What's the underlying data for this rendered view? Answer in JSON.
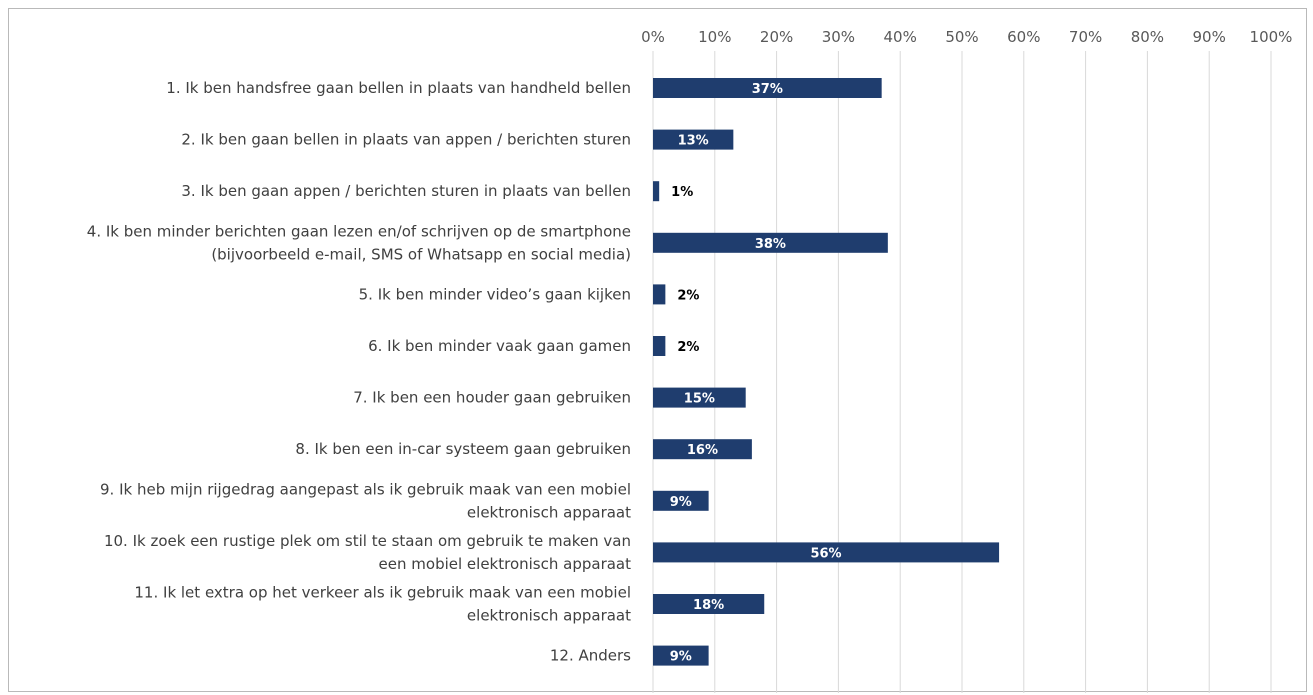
{
  "chart_data": {
    "type": "bar",
    "orientation": "horizontal",
    "title": "",
    "xlabel": "",
    "ylabel": "",
    "xlim": [
      0,
      100
    ],
    "x_ticks": [
      "0%",
      "10%",
      "20%",
      "30%",
      "40%",
      "50%",
      "60%",
      "70%",
      "80%",
      "90%",
      "100%"
    ],
    "x_axis_position": "top",
    "grid": true,
    "legend": "none",
    "bar_color": "#1f3d6e",
    "categories": [
      [
        "1. Ik ben handsfree gaan bellen in plaats van handheld bellen"
      ],
      [
        "2. Ik ben gaan bellen in plaats van appen / berichten sturen"
      ],
      [
        "3. Ik ben gaan appen / berichten sturen in plaats van bellen"
      ],
      [
        "4. Ik ben minder berichten gaan lezen en/of schrijven op de smartphone",
        "(bijvoorbeeld e-mail, SMS of Whatsapp en social media)"
      ],
      [
        "5. Ik ben minder video’s gaan kijken"
      ],
      [
        "6. Ik ben minder vaak gaan gamen"
      ],
      [
        "7. Ik ben een houder gaan gebruiken"
      ],
      [
        "8. Ik ben een in-car systeem gaan gebruiken"
      ],
      [
        "9. Ik heb mijn rijgedrag aangepast als ik gebruik maak van een mobiel",
        "elektronisch apparaat"
      ],
      [
        "10. Ik zoek een rustige plek om stil te staan om gebruik te maken van",
        "een mobiel elektronisch apparaat"
      ],
      [
        "11. Ik let extra op het verkeer als ik gebruik maak van een mobiel",
        "elektronisch apparaat"
      ],
      [
        "12. Anders"
      ]
    ],
    "values": [
      37,
      13,
      1,
      38,
      2,
      2,
      15,
      16,
      9,
      56,
      18,
      9
    ],
    "data_labels": [
      "37%",
      "13%",
      "1%",
      "38%",
      "2%",
      "2%",
      "15%",
      "16%",
      "9%",
      "56%",
      "18%",
      "9%"
    ]
  }
}
